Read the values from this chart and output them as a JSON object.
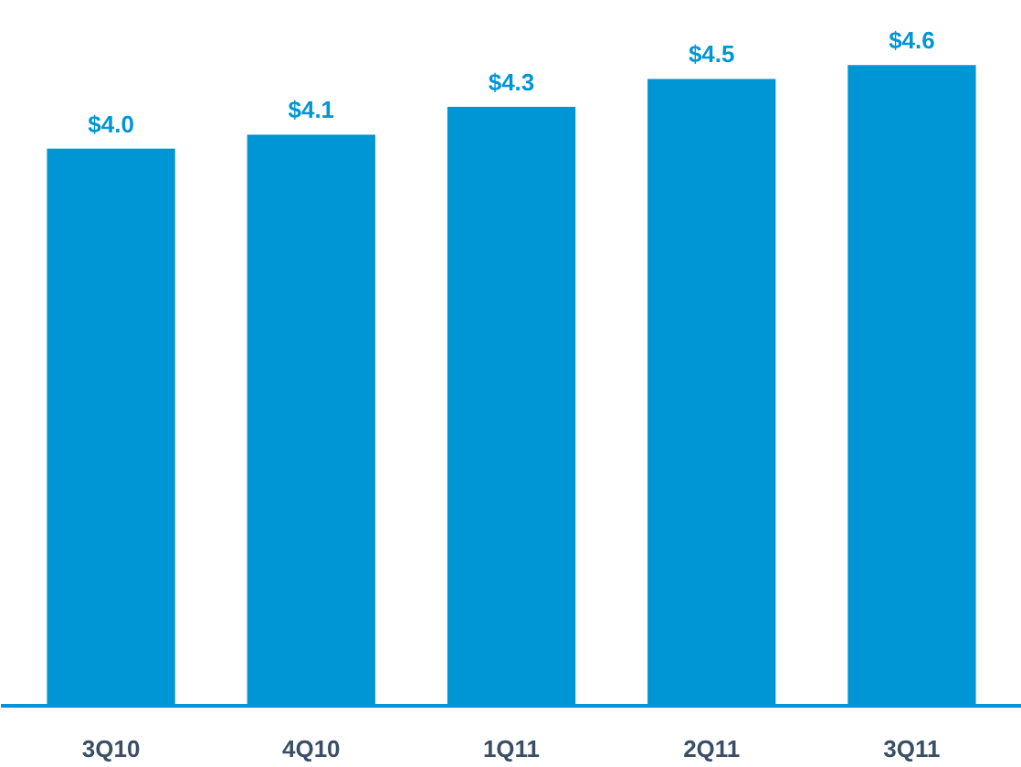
{
  "chart_data": {
    "type": "bar",
    "categories": [
      "3Q10",
      "4Q10",
      "1Q11",
      "2Q11",
      "3Q11"
    ],
    "values": [
      4.0,
      4.1,
      4.3,
      4.5,
      4.6
    ],
    "value_labels": [
      "$4.0",
      "$4.1",
      "$4.3",
      "$4.5",
      "$4.6"
    ],
    "color": "#0096d6",
    "grid": false
  }
}
